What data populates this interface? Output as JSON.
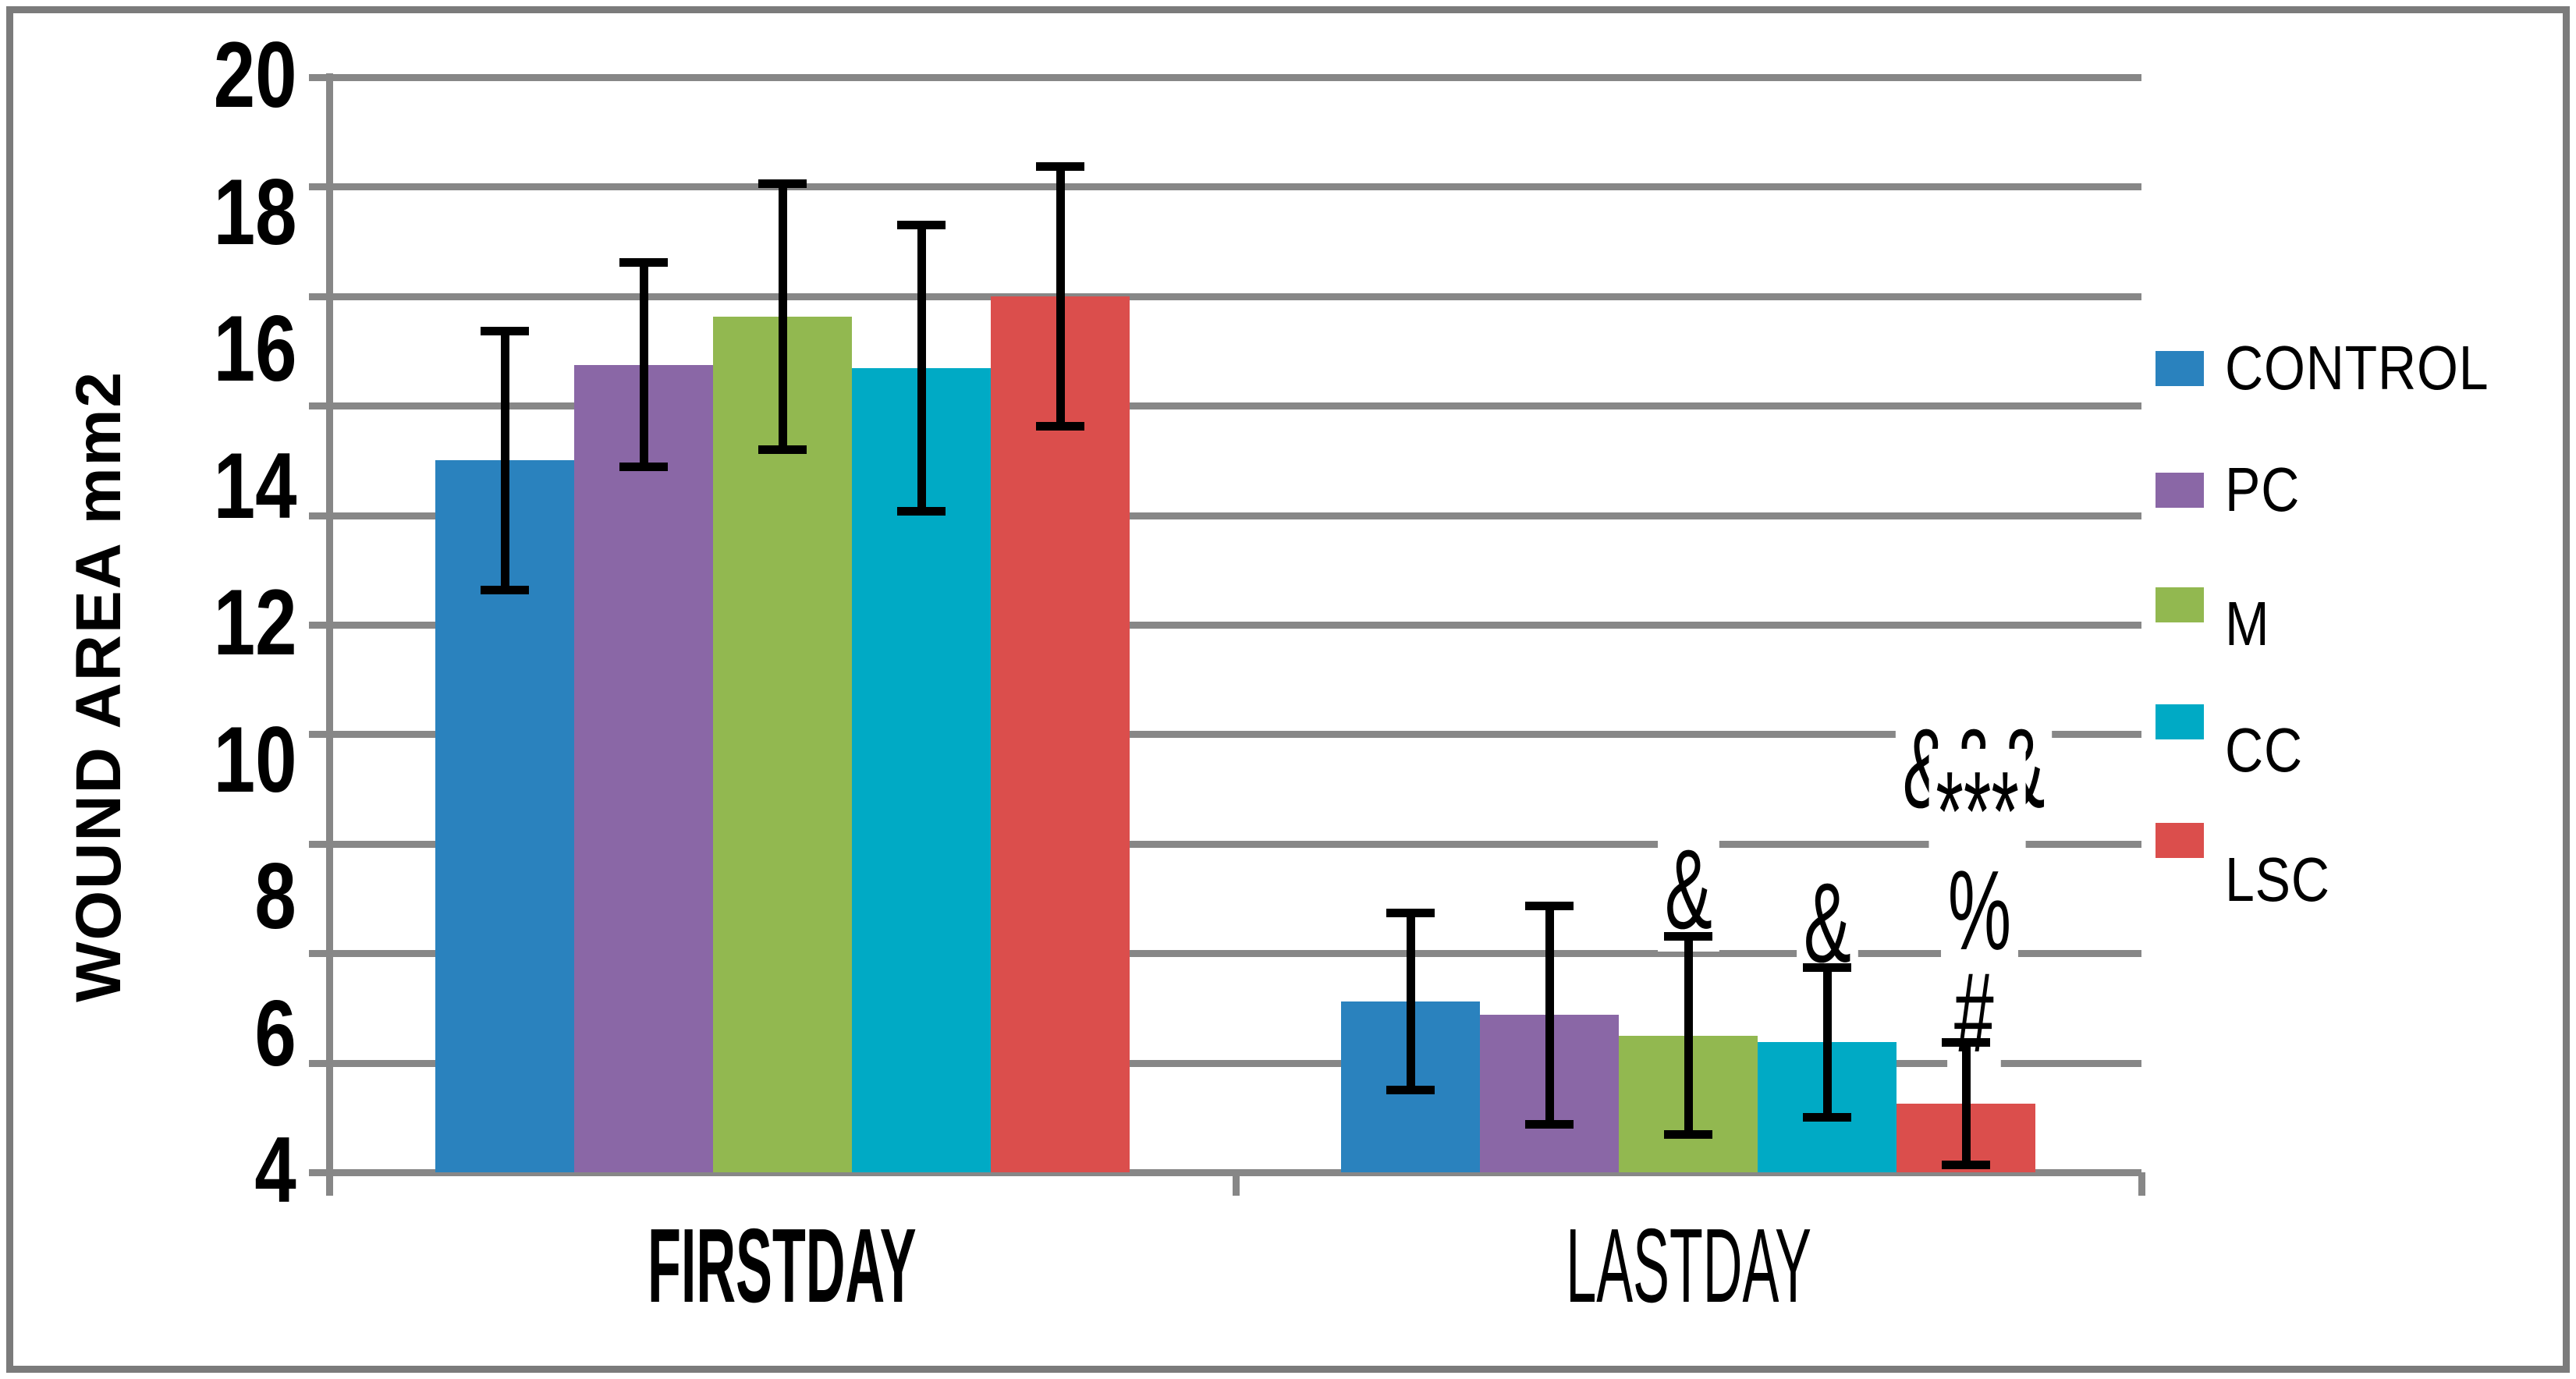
{
  "chart_data": {
    "type": "bar",
    "title": "",
    "ylabel": "WOUND AREA mm2",
    "xlabel": "",
    "categories": [
      "FIRSTDAY",
      "LASTDAY"
    ],
    "categories_bold": [
      true,
      false
    ],
    "ylim": [
      4,
      20
    ],
    "ytick_labels": [
      20,
      18,
      16,
      14,
      12,
      10,
      8,
      6,
      4
    ],
    "gridline_values": [
      20,
      18.4,
      16.8,
      15.2,
      13.6,
      12,
      10.4,
      8.8,
      7.2,
      5.6,
      4
    ],
    "grid_on": true,
    "legend_position": "right",
    "series": [
      {
        "name": "CONTROL",
        "color": "#2a82be",
        "values": [
          14.4,
          6.5
        ],
        "errors": [
          1.9,
          1.3
        ]
      },
      {
        "name": "PC",
        "color": "#8a67a6",
        "values": [
          15.8,
          6.3
        ],
        "errors": [
          1.5,
          1.6
        ]
      },
      {
        "name": "M",
        "color": "#92b850",
        "values": [
          16.5,
          6.0
        ],
        "errors": [
          1.95,
          1.45
        ]
      },
      {
        "name": "CC",
        "color": "#00aac5",
        "values": [
          15.75,
          5.9
        ],
        "errors": [
          2.1,
          1.1
        ]
      },
      {
        "name": "LSC",
        "color": "#db4e4c",
        "values": [
          16.8,
          5.0
        ],
        "errors": [
          1.9,
          0.9
        ]
      }
    ],
    "annotations": [
      {
        "text": "&",
        "category_index": 1,
        "series": "M",
        "y": 8.14,
        "dx": 0
      },
      {
        "text": "&",
        "category_index": 1,
        "series": "CC",
        "y": 7.65,
        "dx": 0
      },
      {
        "text": "&&&",
        "category_index": 1,
        "series": "LSC",
        "y": 9.9,
        "dx": 10
      },
      {
        "text": "***",
        "category_index": 1,
        "series": "LSC",
        "y": 9.28,
        "dx": 14
      },
      {
        "text": "%",
        "category_index": 1,
        "series": "LSC",
        "y": 7.83,
        "dx": 17
      },
      {
        "text": "#",
        "category_index": 1,
        "series": "LSC",
        "y": 6.34,
        "dx": 10
      }
    ],
    "colors": {
      "grid": "#878787",
      "axis": "#878787",
      "error_bar": "#000000",
      "text": "#000000",
      "figure_border": "#7b7b7b",
      "background": "#ffffff"
    }
  }
}
